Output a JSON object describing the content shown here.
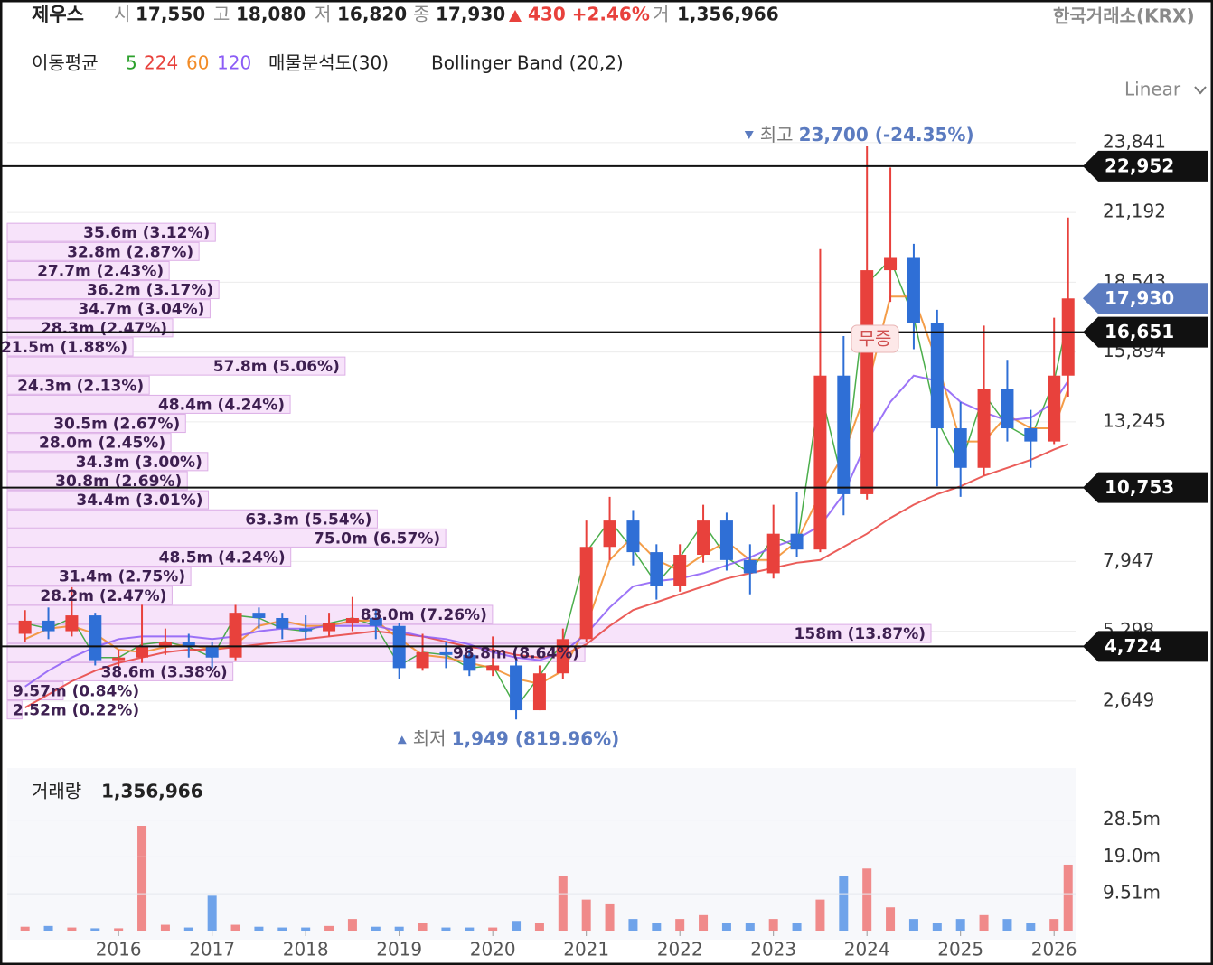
{
  "header": {
    "name": "제우스",
    "items": [
      {
        "label": "시",
        "value": "17,550"
      },
      {
        "label": "고",
        "value": "18,080"
      },
      {
        "label": "저",
        "value": "16,820"
      },
      {
        "label": "종",
        "value": "17,930"
      }
    ],
    "change": "430 +2.46%",
    "volume_label": "거",
    "volume": "1,356,966",
    "exchange": "한국거래소(KRX)"
  },
  "chart_data": [
    {
      "type": "candlestick",
      "ma_label": "이동평균",
      "bollinger": "Bollinger Band (20,2)",
      "scale": "Linear",
      "event_marker": "무증",
      "x": [
        2015,
        2015.25,
        2015.5,
        2015.75,
        2016,
        2016.25,
        2016.5,
        2016.75,
        2017,
        2017.25,
        2017.5,
        2017.75,
        2018,
        2018.25,
        2018.5,
        2018.75,
        2019,
        2019.25,
        2019.5,
        2019.75,
        2020,
        2020.25,
        2020.5,
        2020.75,
        2021,
        2021.25,
        2021.5,
        2021.75,
        2022,
        2022.25,
        2022.5,
        2022.75,
        2023,
        2023.25,
        2023.5,
        2023.75,
        2024,
        2024.25,
        2024.5,
        2024.75,
        2025,
        2025.25,
        2025.5,
        2025.75,
        2026,
        2026.15
      ],
      "open": [
        5200,
        5700,
        5300,
        5900,
        4200,
        4300,
        4700,
        4900,
        4700,
        4300,
        6000,
        5800,
        5400,
        5300,
        5600,
        5800,
        5500,
        3900,
        4500,
        4400,
        3800,
        4000,
        2300,
        3700,
        5000,
        8500,
        9500,
        8300,
        7000,
        8200,
        9500,
        8000,
        7500,
        9000,
        8400,
        15000,
        10500,
        19000,
        19500,
        17000,
        13000,
        11500,
        14500,
        13000,
        12500,
        15000
      ],
      "high": [
        6100,
        6200,
        6970,
        6000,
        4600,
        6300,
        5400,
        5200,
        4900,
        6300,
        6200,
        6000,
        5900,
        6000,
        6600,
        6100,
        5600,
        5200,
        4900,
        4600,
        5100,
        4300,
        4000,
        5400,
        9500,
        10400,
        9900,
        8600,
        8600,
        10100,
        9800,
        8600,
        10100,
        10600,
        19800,
        16500,
        23700,
        22900,
        20000,
        17500,
        14000,
        16900,
        15600,
        13700,
        17200,
        21000
      ],
      "low": [
        4900,
        5000,
        5100,
        4000,
        3800,
        4100,
        4400,
        4300,
        3900,
        4200,
        5400,
        5000,
        5000,
        5100,
        5300,
        5000,
        3500,
        3800,
        3900,
        3600,
        3600,
        1949,
        2300,
        3500,
        4900,
        8000,
        7800,
        6500,
        6800,
        7900,
        7600,
        6700,
        7300,
        8100,
        8300,
        9700,
        10300,
        17800,
        16000,
        10800,
        10400,
        11200,
        12500,
        11500,
        12400,
        14200
      ],
      "close": [
        5700,
        5300,
        5900,
        4200,
        4300,
        4700,
        4900,
        4700,
        4300,
        6000,
        5800,
        5400,
        5300,
        5600,
        5800,
        5500,
        3900,
        4500,
        4400,
        3800,
        4000,
        2300,
        3700,
        5000,
        8500,
        9500,
        8300,
        7000,
        8200,
        9500,
        8000,
        7500,
        9000,
        8400,
        15000,
        10500,
        19000,
        19500,
        17000,
        13000,
        11500,
        14500,
        13000,
        12500,
        15000,
        17930
      ],
      "up_color": "#e8413c",
      "down_color": "#2f6fd6",
      "series": [
        {
          "name": "5",
          "color": "#2ca02c",
          "values": [
            5600,
            5400,
            5800,
            4300,
            4300,
            4800,
            4900,
            4700,
            4300,
            5900,
            5800,
            5400,
            5300,
            5600,
            5800,
            5500,
            4000,
            4500,
            4400,
            3900,
            4000,
            2400,
            3600,
            4900,
            8300,
            9500,
            8400,
            7100,
            8100,
            9400,
            8100,
            7500,
            8900,
            8500,
            14500,
            10800,
            18500,
            19400,
            17200,
            13300,
            11600,
            14300,
            13100,
            12600,
            14800,
            17200
          ]
        },
        {
          "name": "224",
          "color": "#e8413c",
          "values": [
            2400,
            2900,
            3400,
            3800,
            4100,
            4300,
            4500,
            4600,
            4600,
            4700,
            4800,
            4900,
            5000,
            5100,
            5200,
            5300,
            5200,
            5100,
            4900,
            4700,
            4600,
            4400,
            4300,
            4400,
            4800,
            5500,
            6100,
            6400,
            6700,
            7000,
            7300,
            7500,
            7700,
            7900,
            8000,
            8500,
            9000,
            9600,
            10100,
            10500,
            10800,
            11200,
            11500,
            11800,
            12200,
            12400
          ]
        },
        {
          "name": "60",
          "color": "#f28c28",
          "values": [
            5000,
            5400,
            5500,
            5200,
            4600,
            4500,
            4700,
            4800,
            4600,
            4800,
            5500,
            5700,
            5500,
            5500,
            5700,
            5700,
            5000,
            4400,
            4300,
            4100,
            3900,
            3500,
            3300,
            3800,
            5500,
            8000,
            8900,
            8000,
            7600,
            8200,
            8700,
            8000,
            8000,
            8700,
            10500,
            12000,
            14500,
            18000,
            18000,
            15500,
            12500,
            12500,
            13500,
            13000,
            13000,
            14500
          ]
        },
        {
          "name": "120",
          "color": "#8b5cf6",
          "values": [
            3200,
            3800,
            4300,
            4700,
            5000,
            5100,
            5100,
            5100,
            5000,
            5100,
            5300,
            5400,
            5400,
            5500,
            5500,
            5500,
            5300,
            5100,
            5000,
            4800,
            4500,
            4300,
            4200,
            4500,
            5200,
            6200,
            7000,
            7200,
            7300,
            7500,
            7800,
            8100,
            8500,
            8800,
            9300,
            10500,
            12500,
            14000,
            15000,
            14800,
            14000,
            13600,
            13300,
            13400,
            14000,
            14800
          ]
        }
      ],
      "xlim": [
        2014.81,
        2026.23
      ],
      "ylim": [
        450,
        26170
      ],
      "yticks": [
        {
          "value": 2649,
          "label": "2,649"
        },
        {
          "value": 5298,
          "label": "5,298"
        },
        {
          "value": 7947,
          "label": "7,947"
        },
        {
          "value": 13245,
          "label": "13,245"
        },
        {
          "value": 15894,
          "label": "15,894"
        },
        {
          "value": 18543,
          "label": "18,543"
        },
        {
          "value": 21192,
          "label": "21,192"
        },
        {
          "value": 23841,
          "label": "23,841"
        }
      ],
      "grid": true,
      "levels": [
        {
          "value": 22952,
          "label": "22,952"
        },
        {
          "value": 16651,
          "label": "16,651"
        },
        {
          "value": 10753,
          "label": "10,753"
        },
        {
          "value": 4724,
          "label": "4,724"
        }
      ],
      "current": {
        "value": 17930,
        "label": "17,930",
        "color": "#5b7bc0"
      },
      "high_annotation": {
        "prefix": "최고",
        "text": "23,700 (-24.35%)"
      },
      "low_annotation": {
        "prefix": "최저",
        "text": "1,949 (819.96%)"
      },
      "volume_profile": {
        "title": "매물분석도(30)",
        "color": "#f7e3fa",
        "price_levels": [
          20438,
          19713,
          18988,
          18263,
          17538,
          16813,
          16088,
          15363,
          14638,
          13913,
          13188,
          12463,
          11738,
          11013,
          10288,
          9563,
          8838,
          8113,
          7388,
          6663,
          5938,
          5213,
          4488,
          3763,
          3038,
          2313
        ],
        "values": [
          35.6,
          32.8,
          27.7,
          36.2,
          34.7,
          28.3,
          21.5,
          57.8,
          24.3,
          48.4,
          30.5,
          28.0,
          34.3,
          30.8,
          34.4,
          63.3,
          75.0,
          48.5,
          31.4,
          28.2,
          83.0,
          158,
          98.8,
          38.6,
          9.57,
          2.52
        ],
        "value_labels": [
          "35.6m (3.12%)",
          "32.8m (2.87%)",
          "27.7m (2.43%)",
          "36.2m (3.17%)",
          "34.7m (3.04%)",
          "28.3m (2.47%)",
          "21.5m (1.88%)",
          "57.8m (5.06%)",
          "24.3m (2.13%)",
          "48.4m (4.24%)",
          "30.5m (2.67%)",
          "28.0m (2.45%)",
          "34.3m (3.00%)",
          "30.8m (2.69%)",
          "34.4m (3.01%)",
          "63.3m (5.54%)",
          "75.0m (6.57%)",
          "48.5m (4.24%)",
          "31.4m (2.75%)",
          "28.2m (2.47%)",
          "83.0m (7.26%)",
          "158m (13.87%)",
          "98.8m (8.64%)",
          "38.6m (3.38%)",
          "9.57m (0.84%)",
          "2.52m (0.22%)"
        ],
        "xlim": [
          0,
          158
        ]
      }
    },
    {
      "type": "bar",
      "title": "거래량",
      "last_value": "1,356,966",
      "x": [
        2015,
        2015.25,
        2015.5,
        2015.75,
        2016,
        2016.25,
        2016.5,
        2016.75,
        2017,
        2017.25,
        2017.5,
        2017.75,
        2018,
        2018.25,
        2018.5,
        2018.75,
        2019,
        2019.25,
        2019.5,
        2019.75,
        2020,
        2020.25,
        2020.5,
        2020.75,
        2021,
        2021.25,
        2021.5,
        2021.75,
        2022,
        2022.25,
        2022.5,
        2022.75,
        2023,
        2023.25,
        2023.5,
        2023.75,
        2024,
        2024.25,
        2024.5,
        2024.75,
        2025,
        2025.25,
        2025.5,
        2025.75,
        2026,
        2026.15
      ],
      "values": [
        1.0,
        1.2,
        0.8,
        0.6,
        0.6,
        27.0,
        1.5,
        0.8,
        9.0,
        1.5,
        1.0,
        0.8,
        0.8,
        1.2,
        3.0,
        1.0,
        1.0,
        2.0,
        0.8,
        0.8,
        0.8,
        2.5,
        2.0,
        14.0,
        8.0,
        7.0,
        3.0,
        2.0,
        3.0,
        4.0,
        2.0,
        2.0,
        3.0,
        2.0,
        8.0,
        14.0,
        16.0,
        6.0,
        3.0,
        2.0,
        3.0,
        4.0,
        3.0,
        2.0,
        3.0,
        17.0
      ],
      "up_color": "#f08a8a",
      "down_color": "#6fa3ea",
      "xlim": [
        2014.81,
        2026.23
      ],
      "xticks": [
        2016,
        2017,
        2018,
        2019,
        2020,
        2021,
        2022,
        2023,
        2024,
        2025,
        2026
      ],
      "ylim": [
        0,
        41.9
      ],
      "yticks": [
        {
          "value": 9.51,
          "label": "9.51m"
        },
        {
          "value": 19.0,
          "label": "19.0m"
        },
        {
          "value": 28.5,
          "label": "28.5m"
        }
      ]
    }
  ]
}
